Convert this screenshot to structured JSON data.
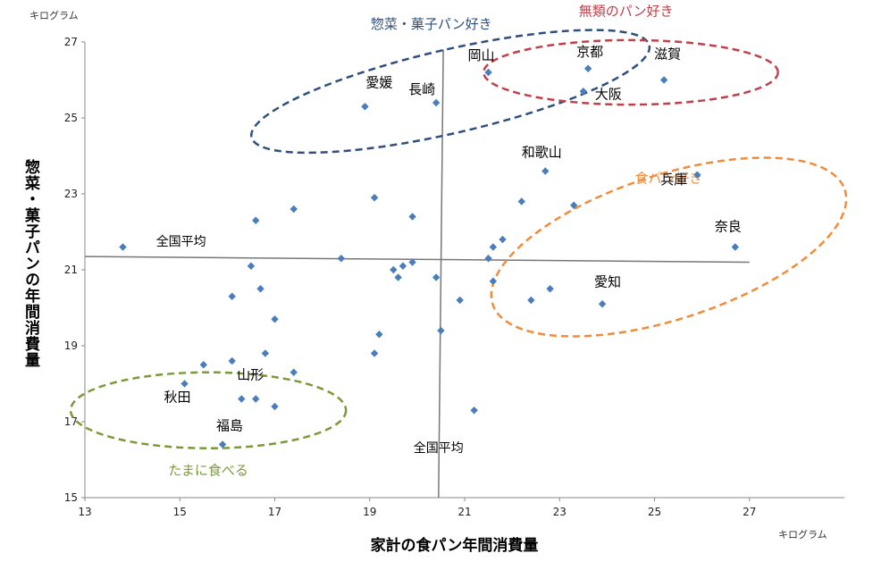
{
  "chart_data": {
    "type": "scatter",
    "xlabel": "家計の食パン年間消費量",
    "ylabel": "惣菜・菓子パンの年間消費量",
    "x_unit": "キログラム",
    "y_unit": "キログラム",
    "xlim": [
      13,
      29
    ],
    "ylim": [
      15,
      27
    ],
    "x_ticks": [
      "13",
      "15",
      "17",
      "19",
      "21",
      "23",
      "25",
      "27"
    ],
    "y_ticks": [
      "15",
      "17",
      "19",
      "21",
      "23",
      "25",
      "27"
    ],
    "grid": false,
    "points": [
      {
        "x": 13.8,
        "y": 21.6
      },
      {
        "x": 15.1,
        "y": 18.0,
        "label": "秋田"
      },
      {
        "x": 15.5,
        "y": 18.5
      },
      {
        "x": 15.9,
        "y": 16.4,
        "label": "福島"
      },
      {
        "x": 16.1,
        "y": 18.6
      },
      {
        "x": 16.1,
        "y": 20.3
      },
      {
        "x": 16.3,
        "y": 17.6,
        "label": "山形"
      },
      {
        "x": 16.5,
        "y": 21.1
      },
      {
        "x": 16.6,
        "y": 22.3
      },
      {
        "x": 16.6,
        "y": 17.6
      },
      {
        "x": 16.7,
        "y": 20.5
      },
      {
        "x": 16.8,
        "y": 18.8
      },
      {
        "x": 17.0,
        "y": 19.7
      },
      {
        "x": 17.0,
        "y": 17.4
      },
      {
        "x": 17.4,
        "y": 22.6
      },
      {
        "x": 17.4,
        "y": 18.3
      },
      {
        "x": 18.4,
        "y": 21.3
      },
      {
        "x": 18.9,
        "y": 25.3,
        "label": "愛媛"
      },
      {
        "x": 19.1,
        "y": 22.9
      },
      {
        "x": 19.1,
        "y": 18.8
      },
      {
        "x": 19.2,
        "y": 19.3
      },
      {
        "x": 19.5,
        "y": 21.0
      },
      {
        "x": 19.6,
        "y": 20.8
      },
      {
        "x": 19.7,
        "y": 21.1
      },
      {
        "x": 19.9,
        "y": 22.4
      },
      {
        "x": 19.9,
        "y": 21.2
      },
      {
        "x": 20.4,
        "y": 25.4,
        "label": "長崎"
      },
      {
        "x": 20.4,
        "y": 20.8
      },
      {
        "x": 20.5,
        "y": 19.4
      },
      {
        "x": 20.9,
        "y": 20.2
      },
      {
        "x": 21.2,
        "y": 17.3
      },
      {
        "x": 21.5,
        "y": 26.2,
        "label": "岡山"
      },
      {
        "x": 21.5,
        "y": 21.3
      },
      {
        "x": 21.6,
        "y": 21.6
      },
      {
        "x": 21.6,
        "y": 20.7
      },
      {
        "x": 21.8,
        "y": 21.8
      },
      {
        "x": 22.2,
        "y": 22.8
      },
      {
        "x": 22.4,
        "y": 20.2
      },
      {
        "x": 22.7,
        "y": 23.6,
        "label": "和歌山"
      },
      {
        "x": 22.8,
        "y": 20.5
      },
      {
        "x": 23.3,
        "y": 22.7
      },
      {
        "x": 23.5,
        "y": 25.7,
        "label": "大阪"
      },
      {
        "x": 23.6,
        "y": 26.3,
        "label": "京都"
      },
      {
        "x": 23.9,
        "y": 20.1,
        "label": "愛知"
      },
      {
        "x": 25.2,
        "y": 26.0,
        "label": "滋賀"
      },
      {
        "x": 25.9,
        "y": 23.5,
        "label": "兵庫"
      },
      {
        "x": 26.7,
        "y": 21.6,
        "label": "奈良"
      }
    ],
    "reference_lines": [
      {
        "orientation": "horizontal",
        "label": "全国平均",
        "from": [
          13.0,
          21.35
        ],
        "to": [
          27.0,
          21.2
        ]
      },
      {
        "orientation": "vertical",
        "label": "全国平均",
        "from": [
          20.55,
          26.8
        ],
        "to": [
          20.45,
          15.0
        ]
      }
    ],
    "groups": [
      {
        "label": "惣菜・菓子パン好き",
        "color": "#2f4f7f",
        "center": [
          20.7,
          25.7
        ],
        "radii": [
          4.3,
          1.1
        ],
        "rotate_deg": -13
      },
      {
        "label": "無類のパン好き",
        "color": "#c0404a",
        "center": [
          24.5,
          26.2
        ],
        "radii": [
          3.1,
          0.85
        ],
        "rotate_deg": 0
      },
      {
        "label": "食パン好き",
        "color": "#f08c3a",
        "center": [
          25.3,
          21.6
        ],
        "radii": [
          3.9,
          1.9
        ],
        "rotate_deg": -18
      },
      {
        "label": "たまに食べる",
        "color": "#7a9a3a",
        "center": [
          15.6,
          17.3
        ],
        "radii": [
          2.9,
          1.0
        ],
        "rotate_deg": 0
      }
    ]
  }
}
